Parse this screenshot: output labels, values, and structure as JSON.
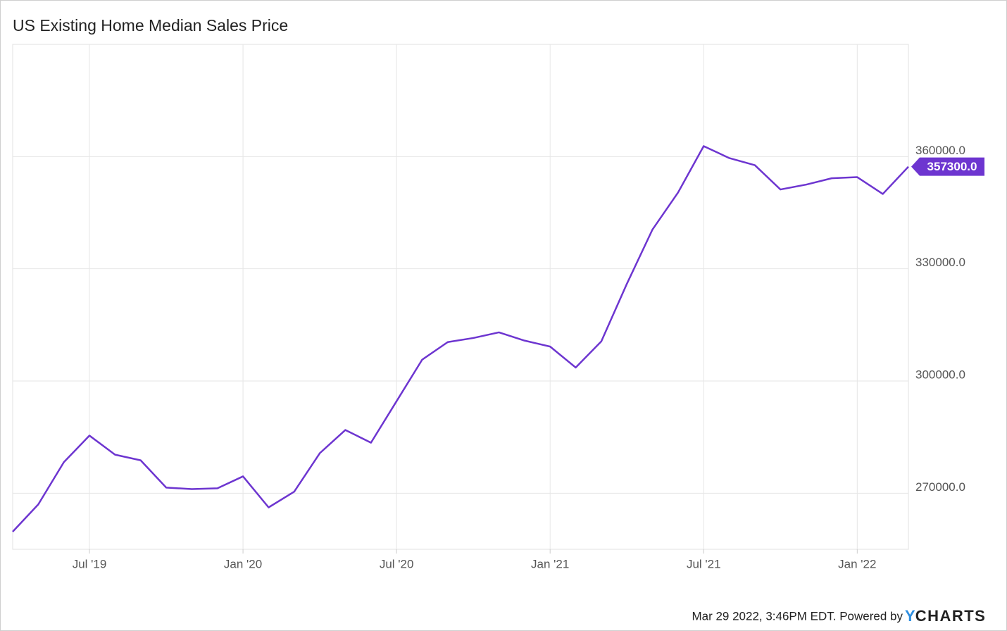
{
  "chart_data": {
    "type": "line",
    "title": "US Existing Home Median Sales Price",
    "x": [
      "2019-04",
      "2019-05",
      "2019-06",
      "2019-07",
      "2019-08",
      "2019-09",
      "2019-10",
      "2019-11",
      "2019-12",
      "2020-01",
      "2020-02",
      "2020-03",
      "2020-04",
      "2020-05",
      "2020-06",
      "2020-07",
      "2020-08",
      "2020-09",
      "2020-10",
      "2020-11",
      "2020-12",
      "2021-01",
      "2021-02",
      "2021-03",
      "2021-04",
      "2021-05",
      "2021-06",
      "2021-07",
      "2021-08",
      "2021-09",
      "2021-10",
      "2021-11",
      "2021-12",
      "2022-01",
      "2022-02",
      "2022-03"
    ],
    "series": [
      {
        "name": "US Existing Home Median Sales Price",
        "color": "#6d35d0",
        "values": [
          259700,
          267000,
          278300,
          285400,
          280300,
          278800,
          271500,
          271100,
          271300,
          274500,
          266200,
          270400,
          280700,
          286900,
          283500,
          294600,
          305700,
          310400,
          311500,
          313000,
          310800,
          309200,
          303600,
          310600,
          326000,
          340500,
          350400,
          362800,
          359600,
          357700,
          351200,
          352500,
          354200,
          354500,
          350000,
          357300
        ],
        "value_labels": [
          null,
          null,
          null,
          null,
          null,
          null,
          null,
          null,
          null,
          null,
          null,
          null,
          null,
          null,
          null,
          null,
          null,
          null,
          null,
          null,
          null,
          null,
          null,
          null,
          null,
          null,
          null,
          null,
          null,
          null,
          null,
          null,
          null,
          null,
          null,
          "357300.0"
        ]
      }
    ],
    "xlim": [
      "2019-04",
      "2022-03"
    ],
    "xticks": [
      {
        "value": "2019-07",
        "label": "Jul '19"
      },
      {
        "value": "2020-01",
        "label": "Jan '20"
      },
      {
        "value": "2020-07",
        "label": "Jul '20"
      },
      {
        "value": "2021-01",
        "label": "Jan '21"
      },
      {
        "value": "2021-07",
        "label": "Jul '21"
      },
      {
        "value": "2022-01",
        "label": "Jan '22"
      }
    ],
    "ylim": [
      255000,
      390000
    ],
    "yticks": [
      {
        "value": 270000,
        "label": "270000.0"
      },
      {
        "value": 300000,
        "label": "300000.0"
      },
      {
        "value": 330000,
        "label": "330000.0"
      },
      {
        "value": 360000,
        "label": "360000.0"
      }
    ],
    "grid": true
  },
  "footer": {
    "timestamp": "Mar 29 2022, 3:46PM EDT. Powered by",
    "logo_y": "Y",
    "logo_rest": "CHARTS"
  }
}
